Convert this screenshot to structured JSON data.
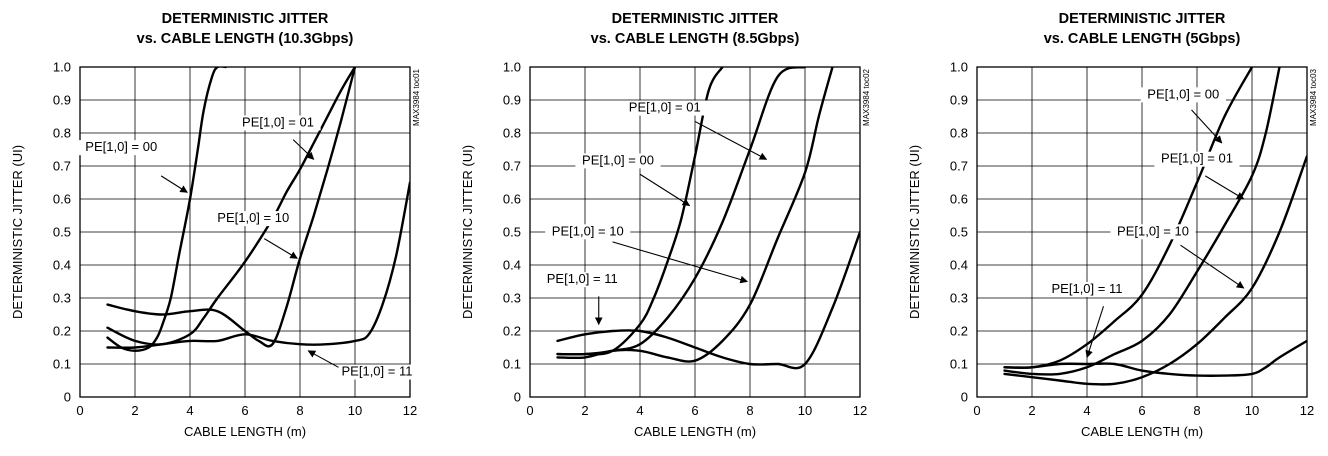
{
  "chart_data": [
    {
      "type": "line",
      "title_lines": [
        "DETERMINISTIC JITTER",
        "vs. CABLE LENGTH (10.3Gbps)"
      ],
      "xlabel": "CABLE LENGTH (m)",
      "ylabel": "DETERMINISTIC JITTER (UI)",
      "xlim": [
        0,
        12
      ],
      "ylim": [
        0,
        1.0
      ],
      "xticks": [
        "0",
        "2",
        "4",
        "6",
        "8",
        "10",
        "12"
      ],
      "yticks": [
        "0",
        "0.1",
        "0.2",
        "0.3",
        "0.4",
        "0.5",
        "0.6",
        "0.7",
        "0.8",
        "0.9",
        "1.0"
      ],
      "grid": true,
      "code": "MAX3984 toc01",
      "series": [
        {
          "name": "PE[1,0] = 00",
          "x": [
            1,
            1.5,
            2,
            2.5,
            2.8,
            3,
            3.3,
            3.6,
            4,
            4.3,
            4.5,
            4.8,
            5,
            5.3
          ],
          "y": [
            0.18,
            0.15,
            0.14,
            0.15,
            0.18,
            0.22,
            0.3,
            0.43,
            0.6,
            0.76,
            0.87,
            0.97,
            1.0,
            1.0
          ]
        },
        {
          "name": "PE[1,0] = 01",
          "x": [
            1,
            2,
            3,
            4,
            4.5,
            5,
            6,
            7,
            7.5,
            8,
            8.5,
            9,
            9.5,
            10
          ],
          "y": [
            0.21,
            0.17,
            0.16,
            0.19,
            0.24,
            0.3,
            0.41,
            0.54,
            0.62,
            0.69,
            0.77,
            0.85,
            0.93,
            1.0
          ]
        },
        {
          "name": "PE[1,0] = 10",
          "x": [
            1,
            2,
            3,
            4,
            5,
            6,
            6.5,
            7,
            7.5,
            8,
            8.5,
            9,
            9.5,
            10
          ],
          "y": [
            0.28,
            0.26,
            0.25,
            0.26,
            0.26,
            0.2,
            0.17,
            0.16,
            0.27,
            0.42,
            0.55,
            0.69,
            0.84,
            1.0
          ]
        },
        {
          "name": "PE[1,0] = 11",
          "x": [
            1,
            2,
            3,
            4,
            5,
            6,
            7,
            8,
            9,
            10,
            10.5,
            11,
            11.5,
            12
          ],
          "y": [
            0.15,
            0.15,
            0.16,
            0.17,
            0.17,
            0.19,
            0.17,
            0.16,
            0.16,
            0.17,
            0.19,
            0.28,
            0.43,
            0.65
          ]
        }
      ],
      "annotations": [
        {
          "text": "PE[1,0] = 00",
          "at": [
            1.5,
            0.745
          ],
          "anchor": "middle",
          "arrow_from": [
            2.95,
            0.67
          ],
          "arrow_to": [
            3.9,
            0.62
          ]
        },
        {
          "text": "PE[1,0] = 01",
          "at": [
            7.2,
            0.82
          ],
          "anchor": "middle",
          "arrow_from": [
            7.75,
            0.78
          ],
          "arrow_to": [
            8.5,
            0.72
          ]
        },
        {
          "text": "PE[1,0] = 10",
          "at": [
            6.3,
            0.53
          ],
          "anchor": "middle",
          "arrow_from": [
            6.7,
            0.48
          ],
          "arrow_to": [
            7.9,
            0.42
          ]
        },
        {
          "text": "PE[1,0] = 11",
          "at": [
            10.8,
            0.065
          ],
          "anchor": "middle",
          "arrow_from": [
            9.4,
            0.09
          ],
          "arrow_to": [
            8.3,
            0.14
          ]
        }
      ]
    },
    {
      "type": "line",
      "title_lines": [
        "DETERMINISTIC JITTER",
        "vs. CABLE LENGTH (8.5Gbps)"
      ],
      "xlabel": "CABLE LENGTH (m)",
      "ylabel": "DETERMINISTIC JITTER (UI)",
      "xlim": [
        0,
        12
      ],
      "ylim": [
        0,
        1.0
      ],
      "xticks": [
        "0",
        "2",
        "4",
        "6",
        "8",
        "10",
        "12"
      ],
      "yticks": [
        "0",
        "0.1",
        "0.2",
        "0.3",
        "0.4",
        "0.5",
        "0.6",
        "0.7",
        "0.8",
        "0.9",
        "1.0"
      ],
      "grid": true,
      "code": "MAX3984 toc02",
      "series": [
        {
          "name": "PE[1,0] = 00",
          "x": [
            1,
            2,
            3,
            4,
            4.5,
            5,
            5.5,
            6,
            6.5,
            7
          ],
          "y": [
            0.13,
            0.13,
            0.14,
            0.22,
            0.3,
            0.41,
            0.54,
            0.73,
            0.93,
            1.0
          ]
        },
        {
          "name": "PE[1,0] = 01",
          "x": [
            1,
            2,
            3,
            4,
            5,
            6,
            7,
            8,
            9,
            10
          ],
          "y": [
            0.13,
            0.13,
            0.14,
            0.16,
            0.24,
            0.36,
            0.53,
            0.75,
            0.97,
            1.0
          ]
        },
        {
          "name": "PE[1,0] = 10",
          "x": [
            1,
            2,
            3,
            4,
            5,
            6,
            7,
            8,
            9,
            10,
            10.5,
            11
          ],
          "y": [
            0.12,
            0.12,
            0.14,
            0.14,
            0.12,
            0.11,
            0.17,
            0.28,
            0.48,
            0.68,
            0.85,
            1.0
          ]
        },
        {
          "name": "PE[1,0] = 11",
          "x": [
            1,
            2,
            3,
            4,
            5,
            6,
            7,
            8,
            9,
            10,
            11,
            12
          ],
          "y": [
            0.17,
            0.19,
            0.2,
            0.2,
            0.18,
            0.15,
            0.12,
            0.1,
            0.1,
            0.1,
            0.27,
            0.5
          ]
        }
      ],
      "annotations": [
        {
          "text": "PE[1,0] = 01",
          "at": [
            4.9,
            0.865
          ],
          "anchor": "middle",
          "arrow_from": [
            6.0,
            0.835
          ],
          "arrow_to": [
            8.6,
            0.72
          ]
        },
        {
          "text": "PE[1,0] = 00",
          "at": [
            3.2,
            0.705
          ],
          "anchor": "middle",
          "arrow_from": [
            4.0,
            0.675
          ],
          "arrow_to": [
            5.8,
            0.58
          ]
        },
        {
          "text": "PE[1,0] = 10",
          "at": [
            2.1,
            0.49
          ],
          "anchor": "middle",
          "arrow_from": [
            3.0,
            0.47
          ],
          "arrow_to": [
            7.9,
            0.35
          ]
        },
        {
          "text": "PE[1,0] = 11",
          "at": [
            1.9,
            0.345
          ],
          "anchor": "middle",
          "arrow_from": [
            2.5,
            0.305
          ],
          "arrow_to": [
            2.5,
            0.22
          ]
        }
      ]
    },
    {
      "type": "line",
      "title_lines": [
        "DETERMINISTIC JITTER",
        "vs. CABLE LENGTH (5Gbps)"
      ],
      "xlabel": "CABLE LENGTH (m)",
      "ylabel": "DETERMINISTIC JITTER (UI)",
      "xlim": [
        0,
        12
      ],
      "ylim": [
        0,
        1.0
      ],
      "xticks": [
        "0",
        "2",
        "4",
        "6",
        "8",
        "10",
        "12"
      ],
      "yticks": [
        "0",
        "0.1",
        "0.2",
        "0.3",
        "0.4",
        "0.5",
        "0.6",
        "0.7",
        "0.8",
        "0.9",
        "1.0"
      ],
      "grid": true,
      "code": "MAX3984 toc03",
      "series": [
        {
          "name": "PE[1,0] = 00",
          "x": [
            1,
            2,
            3,
            4,
            5,
            6,
            7,
            8,
            9,
            10
          ],
          "y": [
            0.09,
            0.09,
            0.11,
            0.16,
            0.23,
            0.31,
            0.46,
            0.65,
            0.85,
            1.0
          ]
        },
        {
          "name": "PE[1,0] = 01",
          "x": [
            1,
            2,
            3,
            4,
            5,
            6,
            7,
            8,
            9,
            10,
            10.5,
            11
          ],
          "y": [
            0.08,
            0.07,
            0.07,
            0.09,
            0.13,
            0.17,
            0.25,
            0.38,
            0.52,
            0.67,
            0.8,
            1.0
          ]
        },
        {
          "name": "PE[1,0] = 10",
          "x": [
            1,
            2,
            3,
            4,
            5,
            6,
            7,
            8,
            9,
            10,
            11,
            12
          ],
          "y": [
            0.07,
            0.06,
            0.05,
            0.04,
            0.04,
            0.06,
            0.1,
            0.16,
            0.24,
            0.33,
            0.5,
            0.73
          ]
        },
        {
          "name": "PE[1,0] = 11",
          "x": [
            1,
            2,
            3,
            4,
            5,
            6,
            7,
            8,
            9,
            10,
            10.5,
            11,
            12
          ],
          "y": [
            0.09,
            0.09,
            0.1,
            0.1,
            0.1,
            0.08,
            0.07,
            0.065,
            0.065,
            0.07,
            0.09,
            0.12,
            0.17
          ]
        }
      ],
      "annotations": [
        {
          "text": "PE[1,0] = 00",
          "at": [
            7.5,
            0.905
          ],
          "anchor": "middle",
          "arrow_from": [
            7.8,
            0.87
          ],
          "arrow_to": [
            8.9,
            0.77
          ]
        },
        {
          "text": "PE[1,0] = 01",
          "at": [
            8.0,
            0.71
          ],
          "anchor": "middle",
          "arrow_from": [
            8.3,
            0.67
          ],
          "arrow_to": [
            9.7,
            0.6
          ]
        },
        {
          "text": "PE[1,0] = 10",
          "at": [
            6.4,
            0.49
          ],
          "anchor": "middle",
          "arrow_from": [
            7.4,
            0.46
          ],
          "arrow_to": [
            9.7,
            0.33
          ]
        },
        {
          "text": "PE[1,0] = 11",
          "at": [
            4.0,
            0.315
          ],
          "anchor": "middle",
          "arrow_from": [
            4.6,
            0.275
          ],
          "arrow_to": [
            4.0,
            0.12
          ]
        }
      ]
    }
  ]
}
